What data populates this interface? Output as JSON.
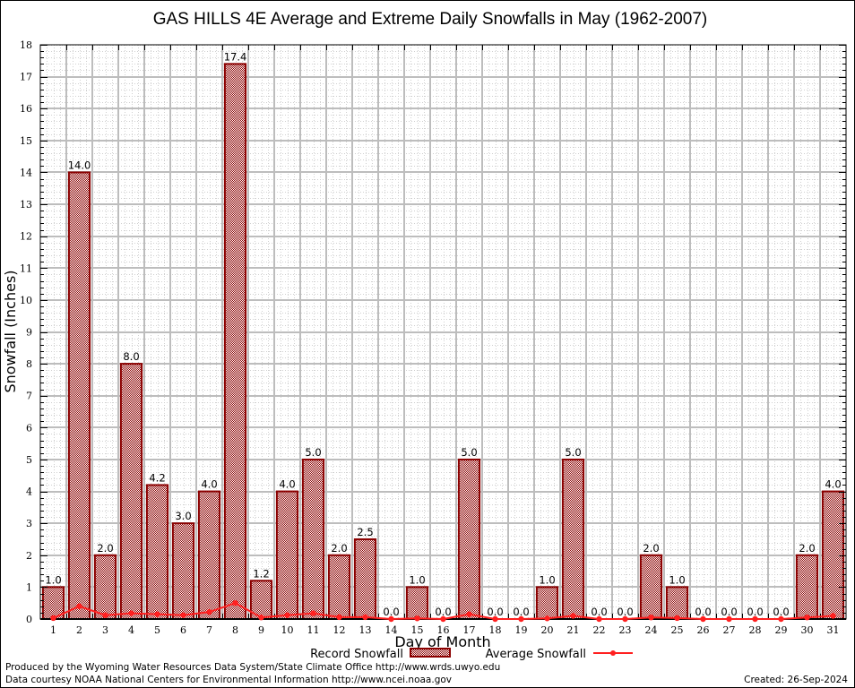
{
  "chart_data": {
    "type": "bar",
    "title": "GAS HILLS 4E Average and Extreme Daily Snowfalls in May (1962-2007)",
    "xlabel": "Day of Month",
    "ylabel": "Snowfall (Inches)",
    "ylim": [
      0,
      18
    ],
    "yticks": [
      "0",
      "1",
      "2",
      "3",
      "4",
      "5",
      "6",
      "7",
      "8",
      "9",
      "10",
      "11",
      "12",
      "13",
      "14",
      "15",
      "16",
      "17",
      "18"
    ],
    "categories": [
      "1",
      "2",
      "3",
      "4",
      "5",
      "6",
      "7",
      "8",
      "9",
      "10",
      "11",
      "12",
      "13",
      "14",
      "15",
      "16",
      "17",
      "18",
      "19",
      "20",
      "21",
      "22",
      "23",
      "24",
      "25",
      "26",
      "27",
      "28",
      "29",
      "30",
      "31"
    ],
    "grid": true,
    "legend_position": "bottom-center",
    "series": [
      {
        "name": "Record Snowfall",
        "type": "bar",
        "color": "#8b0000",
        "values": [
          1.0,
          14.0,
          2.0,
          8.0,
          4.2,
          3.0,
          4.0,
          17.4,
          1.2,
          4.0,
          5.0,
          2.0,
          2.5,
          0.0,
          1.0,
          0.0,
          5.0,
          0.0,
          0.0,
          1.0,
          5.0,
          0.0,
          0.0,
          2.0,
          1.0,
          0.0,
          0.0,
          0.0,
          0.0,
          2.0,
          4.0
        ],
        "labels": [
          "1.0",
          "14.0",
          "2.0",
          "8.0",
          "4.2",
          "3.0",
          "4.0",
          "17.4",
          "1.2",
          "4.0",
          "5.0",
          "2.0",
          "2.5",
          "0.0",
          "1.0",
          "0.0",
          "5.0",
          "0.0",
          "0.0",
          "1.0",
          "5.0",
          "0.0",
          "0.0",
          "2.0",
          "1.0",
          "0.0",
          "0.0",
          "0.0",
          "0.0",
          "2.0",
          "4.0"
        ]
      },
      {
        "name": "Average Snowfall",
        "type": "line",
        "color": "#ff2020",
        "values": [
          0.03,
          0.4,
          0.12,
          0.18,
          0.15,
          0.12,
          0.22,
          0.5,
          0.05,
          0.12,
          0.18,
          0.06,
          0.06,
          0.0,
          0.02,
          0.0,
          0.15,
          0.0,
          0.0,
          0.02,
          0.1,
          0.0,
          0.0,
          0.05,
          0.03,
          0.0,
          0.0,
          0.0,
          0.0,
          0.05,
          0.1
        ]
      }
    ]
  },
  "footer": {
    "produced_by": "Produced by the Wyoming Water Resources Data System/State Climate Office http://www.wrds.uwyo.edu",
    "data_courtesy": "Data courtesy NOAA National Centers for Environmental Information http://www.ncei.noaa.gov",
    "created": "Created: 26-Sep-2024"
  }
}
